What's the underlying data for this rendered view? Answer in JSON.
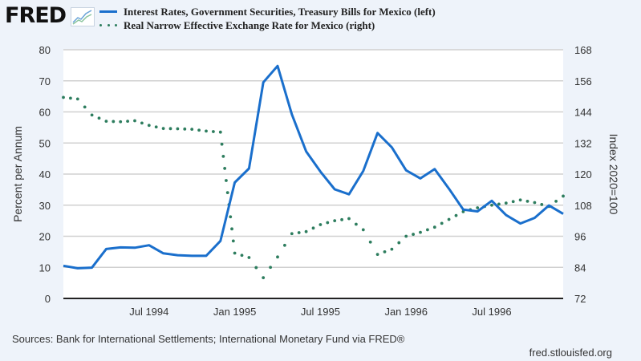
{
  "header": {
    "logo_text": "FRED",
    "logo_icon": "line-chart-icon"
  },
  "legend": [
    {
      "label": "Interest Rates, Government Securities, Treasury Bills for Mexico (left)",
      "style": "solid",
      "color": "#1a6fcc"
    },
    {
      "label": "Real Narrow Effective Exchange Rate for Mexico (right)",
      "style": "dotted",
      "color": "#2d7d5e"
    }
  ],
  "footer": {
    "sources": "Sources: Bank for International Settlements; International Monetary Fund via FRED®",
    "url": "fred.stlouisfed.org"
  },
  "chart_data": {
    "type": "line",
    "title": "",
    "x_start": "Jan 1994",
    "x_end": "Dec 1996",
    "x_tick_labels": [
      {
        "label": "Jul 1994",
        "month_index": 6
      },
      {
        "label": "Jan 1995",
        "month_index": 12
      },
      {
        "label": "Jul 1995",
        "month_index": 18
      },
      {
        "label": "Jan 1996",
        "month_index": 24
      },
      {
        "label": "Jul 1996",
        "month_index": 30
      }
    ],
    "ylabel_left": "Percent per Annum",
    "ylabel_right": "Index 2020=100",
    "ylim_left": [
      0,
      80
    ],
    "ylim_right": [
      72,
      168
    ],
    "yticks_left": [
      0,
      10,
      20,
      30,
      40,
      50,
      60,
      70,
      80
    ],
    "yticks_right": [
      72,
      84,
      96,
      108,
      120,
      132,
      144,
      156,
      168
    ],
    "grid": true,
    "series": [
      {
        "name": "Interest Rates, Government Securities, Treasury Bills for Mexico (left)",
        "axis": "left",
        "color": "#1a6fcc",
        "values": [
          10.5,
          9.7,
          9.9,
          15.9,
          16.4,
          16.3,
          17.1,
          14.5,
          13.9,
          13.7,
          13.7,
          18.5,
          37.3,
          41.8,
          69.5,
          74.8,
          59.2,
          47.3,
          40.8,
          35.1,
          33.5,
          41.0,
          53.2,
          48.6,
          41.2,
          38.6,
          41.6,
          35.3,
          28.6,
          28.0,
          31.4,
          26.8,
          24.1,
          25.9,
          29.9,
          27.2
        ]
      },
      {
        "name": "Real Narrow Effective Exchange Rate for Mexico (right)",
        "axis": "right",
        "color": "#2d7d5e",
        "values": [
          149.6,
          149.0,
          142.8,
          140.4,
          140.2,
          140.6,
          138.8,
          137.6,
          137.5,
          137.3,
          136.6,
          136.2,
          89.5,
          87.8,
          80.0,
          88.0,
          97.0,
          97.8,
          100.5,
          102.0,
          102.8,
          98.5,
          89.0,
          91.0,
          96.0,
          97.5,
          99.5,
          102.5,
          105.5,
          107.0,
          108.0,
          108.8,
          110.0,
          109.0,
          107.5,
          111.5
        ]
      }
    ]
  }
}
